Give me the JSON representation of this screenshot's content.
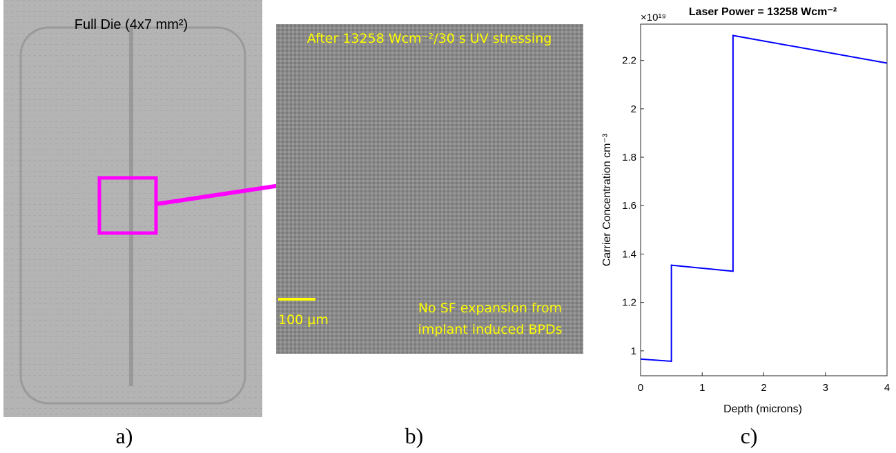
{
  "panels": {
    "a": {
      "caption": "a)",
      "label": "Full Die (4x7 mm²)"
    },
    "b": {
      "caption": "b)",
      "label": "After 13258 Wcm⁻²/30 s UV stressing",
      "scale_bar": "100 µm",
      "note": [
        "No SF expansion from",
        "implant induced BPDs"
      ]
    },
    "c": {
      "caption": "c)"
    }
  },
  "chart_data": {
    "type": "line",
    "title": "Laser Power = 13258 Wcm⁻²",
    "x_label": "Depth (microns)",
    "y_label": "Carrier Concentration cm⁻³",
    "y_multiplier": "×10¹⁹",
    "x": [
      0,
      0.5,
      0.5,
      1.5,
      1.5,
      4
    ],
    "series": [
      {
        "color": "#0000ff",
        "values": [
          0.966,
          0.957,
          1.354,
          1.329,
          2.303,
          2.189
        ]
      }
    ],
    "xlim": [
      0,
      4
    ],
    "xticks": [
      0,
      1,
      2,
      3,
      4
    ],
    "ylim": [
      0.897,
      2.35
    ],
    "yticks": [
      1,
      1.2,
      1.4,
      1.6,
      1.8,
      2,
      2.2
    ]
  }
}
